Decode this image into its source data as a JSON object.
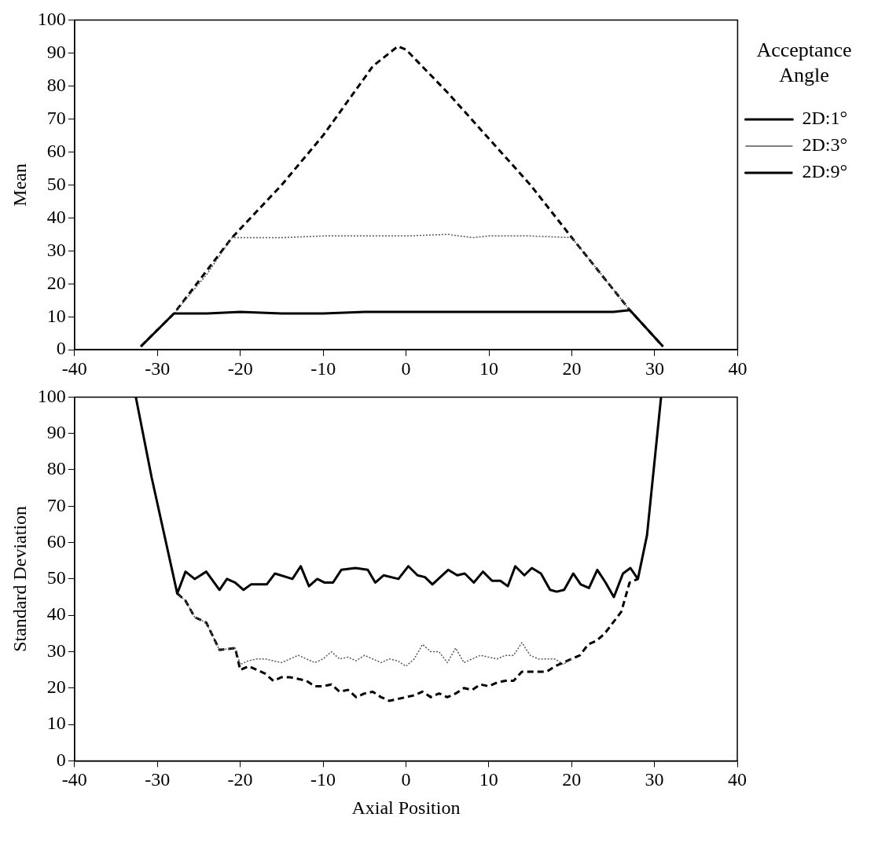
{
  "chart_data": [
    {
      "type": "line",
      "ylabel": "Mean",
      "legend_title": "Acceptance Angle",
      "legend": "right",
      "grid": false,
      "xlim": [
        -40,
        40
      ],
      "xticks": [
        -40,
        -30,
        -20,
        -10,
        0,
        10,
        20,
        30,
        40
      ],
      "ylim": [
        0,
        100
      ],
      "yticks": [
        0,
        10,
        20,
        30,
        40,
        50,
        60,
        70,
        80,
        90,
        100
      ],
      "series": [
        {
          "name": "2D:1°",
          "color": "#000000",
          "line_style": "solid",
          "x": [
            -32,
            -28,
            -24,
            -20,
            -15,
            -10,
            -5,
            0,
            5,
            10,
            15,
            20,
            25,
            27,
            31
          ],
          "values": [
            1,
            11,
            11,
            11.5,
            11,
            11,
            11.5,
            11.5,
            11.5,
            11.5,
            11.5,
            11.5,
            11.5,
            12,
            1
          ]
        },
        {
          "name": "2D:3°",
          "color": "#555555",
          "line_style": "dotted",
          "x": [
            -32,
            -28,
            -24,
            -21,
            -15,
            -10,
            -5,
            0,
            5,
            8,
            10,
            15,
            20,
            27,
            31
          ],
          "values": [
            1,
            11,
            23,
            34,
            34,
            34.5,
            34.5,
            34.5,
            35,
            34,
            34.5,
            34.5,
            34,
            12,
            1
          ]
        },
        {
          "name": "2D:9°",
          "color": "#000000",
          "line_style": "dashed",
          "x": [
            -32,
            -28,
            -21,
            -15,
            -10,
            -4,
            -1,
            0,
            5,
            10,
            15,
            20,
            27,
            31
          ],
          "values": [
            1,
            11,
            34,
            50,
            65,
            86,
            92,
            91,
            78,
            64,
            50,
            34,
            12,
            1
          ]
        }
      ]
    },
    {
      "type": "line",
      "xlabel": "Axial Position",
      "ylabel": "Standard Deviation",
      "legend": false,
      "grid": false,
      "xlim": [
        -40,
        40
      ],
      "xticks": [
        -40,
        -30,
        -20,
        -10,
        0,
        10,
        20,
        30,
        40
      ],
      "ylim": [
        0,
        100
      ],
      "yticks": [
        0,
        10,
        20,
        30,
        40,
        50,
        60,
        70,
        80,
        90,
        100
      ],
      "series": [
        {
          "color": "#000000",
          "line_style": "solid",
          "x": [
            -32.6,
            -30.7,
            -27.6,
            -26.6,
            -25.5,
            -24.1,
            -22.5,
            -21.6,
            -20.6,
            -19.6,
            -18.7,
            -16.8,
            -15.8,
            -13.7,
            -12.7,
            -11.7,
            -10.7,
            -9.8,
            -8.8,
            -7.8,
            -6.1,
            -4.6,
            -3.7,
            -2.7,
            -0.9,
            0.3,
            1.4,
            2.3,
            3.2,
            5.1,
            6.2,
            7.1,
            8.2,
            9.3,
            10.4,
            11.4,
            12.3,
            13.2,
            14.3,
            15.2,
            16.3,
            17.4,
            18.2,
            19.1,
            20.2,
            21.1,
            22.1,
            23.1,
            24.1,
            25.1,
            26.2,
            27.1,
            28.0,
            29.1,
            30.8
          ],
          "values": [
            100,
            78,
            46,
            52,
            50,
            52,
            47,
            50,
            49,
            47,
            48.5,
            48.5,
            51.5,
            50,
            53.5,
            48,
            50,
            49,
            49,
            52.5,
            53,
            52.5,
            49,
            51,
            50,
            53.5,
            51,
            50.5,
            48.5,
            52.5,
            51,
            51.5,
            49,
            52,
            49.5,
            49.5,
            48,
            53.5,
            51,
            53,
            51.5,
            47,
            46.5,
            47,
            51.5,
            48.5,
            47.5,
            52.5,
            49,
            45,
            51.5,
            53,
            50,
            62,
            100
          ]
        },
        {
          "color": "#555555",
          "line_style": "dotted",
          "x": [
            -27.6,
            -26.6,
            -25.5,
            -24.1,
            -22.5,
            -20.6,
            -20,
            -19,
            -18,
            -17,
            -16,
            -15,
            -14,
            -13,
            -12,
            -11,
            -10,
            -9,
            -8,
            -7,
            -6,
            -5,
            -4,
            -3,
            -2,
            -1,
            0,
            1,
            2,
            3,
            4,
            5,
            6,
            7,
            8,
            9,
            10,
            11,
            12,
            13,
            14,
            15,
            16,
            17,
            18,
            19,
            20
          ],
          "values": [
            46,
            44,
            39.5,
            38,
            30.5,
            31,
            26.5,
            27.5,
            28,
            28,
            27.5,
            27,
            28,
            29,
            28,
            27,
            28,
            30,
            28,
            28.5,
            27.5,
            29,
            28,
            27,
            28,
            27.5,
            26,
            28,
            32,
            30,
            30,
            27,
            31,
            27,
            28,
            29,
            28.5,
            28,
            29,
            29,
            32.5,
            29,
            28,
            28,
            28,
            26.5,
            28
          ]
        },
        {
          "color": "#000000",
          "line_style": "dashed",
          "x": [
            -27.6,
            -26.6,
            -25.5,
            -24.1,
            -22.5,
            -20.6,
            -20,
            -19,
            -18,
            -17,
            -16,
            -15,
            -14,
            -12,
            -11,
            -10,
            -9,
            -8,
            -7,
            -6,
            -5,
            -4,
            -3,
            -2,
            -1,
            0,
            1,
            2,
            3,
            4,
            5,
            6,
            7,
            8,
            9,
            10,
            11,
            12,
            13,
            14,
            15,
            16,
            17,
            18,
            19,
            20,
            21,
            22,
            23,
            24,
            25,
            26,
            27,
            28
          ],
          "values": [
            46,
            44,
            39.5,
            38,
            30.5,
            31,
            25,
            26,
            25,
            24,
            22,
            23,
            23,
            22,
            20.5,
            20.5,
            21,
            19,
            19.5,
            17.5,
            18.5,
            19,
            17.5,
            16.5,
            17,
            17.5,
            18,
            19,
            17.5,
            18.5,
            17.5,
            18.5,
            20,
            19.5,
            21,
            20.5,
            21.5,
            22,
            22,
            24.5,
            24.5,
            24.5,
            24.5,
            26,
            27,
            28,
            29,
            32,
            33,
            35,
            38,
            41,
            49,
            50
          ]
        }
      ]
    }
  ]
}
